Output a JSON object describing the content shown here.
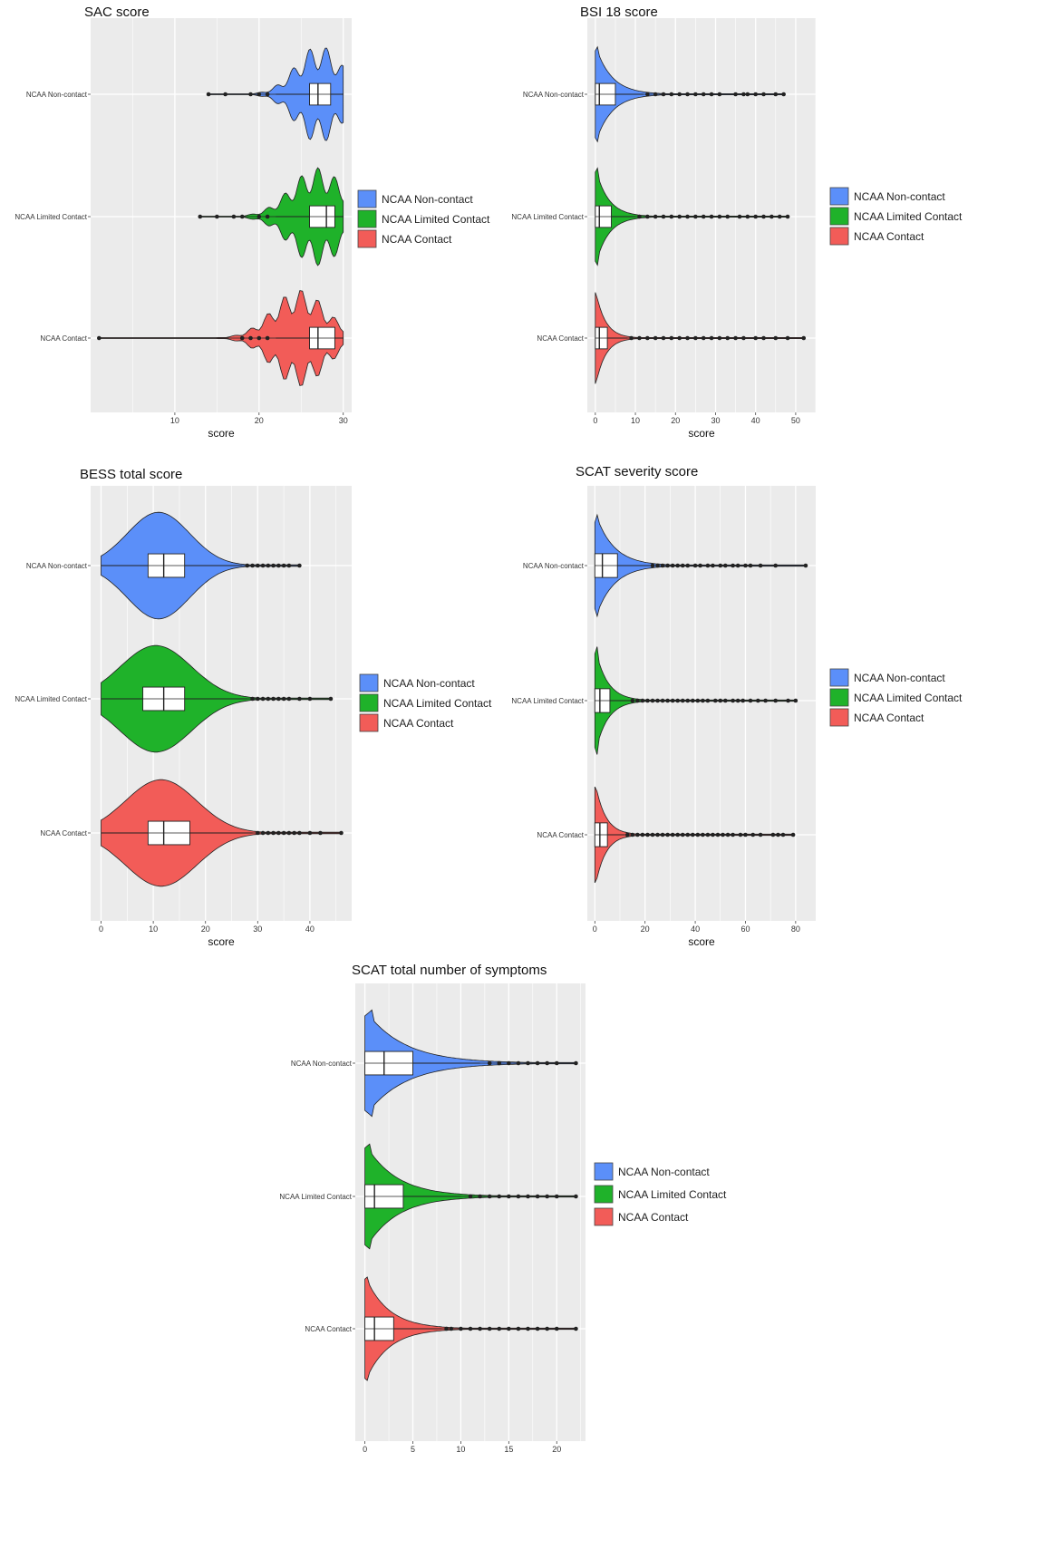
{
  "legend": {
    "entries": [
      "NCAA Non-contact",
      "NCAA Limited Contact",
      "NCAA Contact"
    ],
    "colors": [
      "#5b8ff9",
      "#1fb22a",
      "#f25c58"
    ]
  },
  "chart_data": [
    {
      "type": "violin",
      "title": "SAC score",
      "xlabel": "score",
      "ylabel": "",
      "xlim": [
        0,
        31
      ],
      "xticks": [
        10,
        20,
        30
      ],
      "grid": true,
      "legend_position": "right",
      "categories": [
        "NCAA Non-contact",
        "NCAA Limited Contact",
        "NCAA Contact"
      ],
      "series": [
        {
          "name": "NCAA Non-contact",
          "q1": 26,
          "median": 27,
          "q3": 28.5,
          "whisker_low": 22,
          "whisker_high": 30,
          "outliers": [
            14,
            16,
            19,
            20,
            21
          ],
          "min": 14,
          "max": 30
        },
        {
          "name": "NCAA Limited Contact",
          "q1": 26,
          "median": 28,
          "q3": 29,
          "whisker_low": 22,
          "whisker_high": 30,
          "outliers": [
            13,
            15,
            17,
            18,
            20,
            21
          ],
          "min": 13,
          "max": 30
        },
        {
          "name": "NCAA Contact",
          "q1": 26,
          "median": 27,
          "q3": 29,
          "whisker_low": 22,
          "whisker_high": 30,
          "outliers": [
            1,
            18,
            19,
            20,
            21
          ],
          "min": 1,
          "max": 30
        }
      ]
    },
    {
      "type": "violin",
      "title": "BSI 18 score",
      "xlabel": "score",
      "ylabel": "",
      "xlim": [
        -2,
        55
      ],
      "xticks": [
        0,
        10,
        20,
        30,
        40,
        50
      ],
      "grid": true,
      "legend_position": "right",
      "categories": [
        "NCAA Non-contact",
        "NCAA Limited Contact",
        "NCAA Contact"
      ],
      "series": [
        {
          "name": "NCAA Non-contact",
          "q1": 0,
          "median": 1,
          "q3": 5,
          "whisker_low": 0,
          "whisker_high": 12,
          "outliers": [
            13,
            15,
            17,
            19,
            21,
            23,
            25,
            27,
            29,
            31,
            35,
            37,
            38,
            40,
            42,
            45,
            47
          ],
          "min": 0,
          "max": 47
        },
        {
          "name": "NCAA Limited Contact",
          "q1": 0,
          "median": 1,
          "q3": 4,
          "whisker_low": 0,
          "whisker_high": 10,
          "outliers": [
            11,
            13,
            15,
            17,
            19,
            21,
            23,
            25,
            27,
            29,
            31,
            33,
            36,
            38,
            40,
            42,
            44,
            46,
            48
          ],
          "min": 0,
          "max": 48
        },
        {
          "name": "NCAA Contact",
          "q1": 0,
          "median": 1,
          "q3": 3,
          "whisker_low": 0,
          "whisker_high": 8,
          "outliers": [
            9,
            11,
            13,
            15,
            17,
            19,
            21,
            23,
            25,
            27,
            29,
            31,
            33,
            35,
            37,
            40,
            42,
            45,
            48,
            52
          ],
          "min": 0,
          "max": 52
        }
      ]
    },
    {
      "type": "violin",
      "title": "BESS total score",
      "xlabel": "score",
      "ylabel": "",
      "xlim": [
        -2,
        48
      ],
      "xticks": [
        0,
        10,
        20,
        30,
        40
      ],
      "grid": true,
      "legend_position": "right",
      "categories": [
        "NCAA Non-contact",
        "NCAA Limited Contact",
        "NCAA Contact"
      ],
      "series": [
        {
          "name": "NCAA Non-contact",
          "q1": 9,
          "median": 12,
          "q3": 16,
          "whisker_low": 0,
          "whisker_high": 27,
          "outliers": [
            28,
            29,
            30,
            31,
            32,
            33,
            34,
            35,
            36,
            38
          ],
          "min": 0,
          "max": 38
        },
        {
          "name": "NCAA Limited Contact",
          "q1": 8,
          "median": 12,
          "q3": 16,
          "whisker_low": 0,
          "whisker_high": 28,
          "outliers": [
            29,
            30,
            31,
            32,
            33,
            34,
            35,
            36,
            38,
            40,
            44
          ],
          "min": 0,
          "max": 44
        },
        {
          "name": "NCAA Contact",
          "q1": 9,
          "median": 12,
          "q3": 17,
          "whisker_low": 0,
          "whisker_high": 29,
          "outliers": [
            30,
            31,
            32,
            33,
            34,
            35,
            36,
            37,
            38,
            40,
            42,
            46
          ],
          "min": 0,
          "max": 46
        }
      ]
    },
    {
      "type": "violin",
      "title": "SCAT severity score",
      "xlabel": "score",
      "ylabel": "",
      "xlim": [
        -3,
        88
      ],
      "xticks": [
        0,
        20,
        40,
        60,
        80
      ],
      "grid": true,
      "legend_position": "right",
      "categories": [
        "NCAA Non-contact",
        "NCAA Limited Contact",
        "NCAA Contact"
      ],
      "series": [
        {
          "name": "NCAA Non-contact",
          "q1": 0,
          "median": 3,
          "q3": 9,
          "whisker_low": 0,
          "whisker_high": 22,
          "outliers": [
            23,
            25,
            27,
            29,
            31,
            33,
            35,
            37,
            40,
            42,
            45,
            47,
            50,
            52,
            55,
            57,
            60,
            62,
            66,
            72,
            84
          ],
          "min": 0,
          "max": 84
        },
        {
          "name": "NCAA Limited Contact",
          "q1": 0,
          "median": 2,
          "q3": 6,
          "whisker_low": 0,
          "whisker_high": 14,
          "outliers": [
            15,
            17,
            19,
            21,
            23,
            25,
            27,
            29,
            31,
            33,
            35,
            37,
            39,
            41,
            43,
            45,
            48,
            50,
            52,
            55,
            57,
            59,
            62,
            65,
            68,
            72,
            77,
            80
          ],
          "min": 0,
          "max": 80
        },
        {
          "name": "NCAA Contact",
          "q1": 0,
          "median": 2,
          "q3": 5,
          "whisker_low": 0,
          "whisker_high": 12,
          "outliers": [
            13,
            15,
            17,
            19,
            21,
            23,
            25,
            27,
            29,
            31,
            33,
            35,
            37,
            39,
            41,
            43,
            45,
            47,
            49,
            51,
            53,
            55,
            58,
            60,
            63,
            66,
            71,
            73,
            75,
            79
          ],
          "min": 0,
          "max": 79
        }
      ]
    },
    {
      "type": "violin",
      "title": "SCAT total number of symptoms",
      "xlabel": "",
      "ylabel": "",
      "xlim": [
        -1,
        23
      ],
      "xticks": [
        0,
        5,
        10,
        15,
        20
      ],
      "grid": true,
      "legend_position": "right",
      "categories": [
        "NCAA Non-contact",
        "NCAA Limited Contact",
        "NCAA Contact"
      ],
      "series": [
        {
          "name": "NCAA Non-contact",
          "q1": 0,
          "median": 2,
          "q3": 5,
          "whisker_low": 0,
          "whisker_high": 12,
          "outliers": [
            13,
            14,
            15,
            16,
            17,
            18,
            19,
            20,
            22
          ],
          "min": 0,
          "max": 22
        },
        {
          "name": "NCAA Limited Contact",
          "q1": 0,
          "median": 1,
          "q3": 4,
          "whisker_low": 0,
          "whisker_high": 10,
          "outliers": [
            11,
            12,
            13,
            14,
            15,
            16,
            17,
            18,
            19,
            20,
            22
          ],
          "min": 0,
          "max": 22
        },
        {
          "name": "NCAA Contact",
          "q1": 0,
          "median": 1,
          "q3": 3,
          "whisker_low": 0,
          "whisker_high": 8,
          "outliers": [
            8.5,
            9,
            10,
            11,
            12,
            13,
            14,
            15,
            16,
            17,
            18,
            19,
            20,
            22
          ],
          "min": 0,
          "max": 22
        }
      ]
    }
  ]
}
